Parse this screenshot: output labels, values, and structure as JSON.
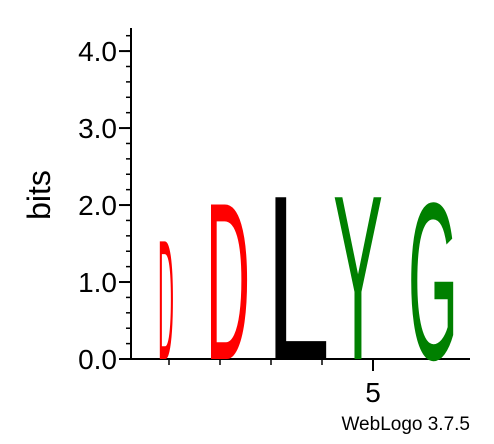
{
  "chart_data": {
    "type": "sequence-logo",
    "ylabel": "bits",
    "ylim": [
      0,
      4.3
    ],
    "yticks": [
      {
        "value": 0,
        "label": "0.0"
      },
      {
        "value": 1,
        "label": "1.0"
      },
      {
        "value": 2,
        "label": "2.0"
      },
      {
        "value": 3,
        "label": "3.0"
      },
      {
        "value": 4,
        "label": "4.0"
      }
    ],
    "xticks": [
      {
        "position": 5,
        "label": "5"
      }
    ],
    "positions": [
      {
        "index": 1,
        "letters": [
          {
            "char": "D",
            "bits": 1.6,
            "color": "#ff0000"
          }
        ]
      },
      {
        "index": 2,
        "letters": [
          {
            "char": "D",
            "bits": 2.1,
            "color": "#ff0000"
          }
        ]
      },
      {
        "index": 3,
        "letters": [
          {
            "char": "L",
            "bits": 2.2,
            "color": "#000000"
          }
        ]
      },
      {
        "index": 4,
        "letters": [
          {
            "char": "Y",
            "bits": 2.2,
            "color": "#008000"
          }
        ]
      },
      {
        "index": 5,
        "letters": [
          {
            "char": "G",
            "bits": 2.1,
            "color": "#008000"
          }
        ]
      }
    ]
  },
  "credit": "WebLogo 3.7.5"
}
